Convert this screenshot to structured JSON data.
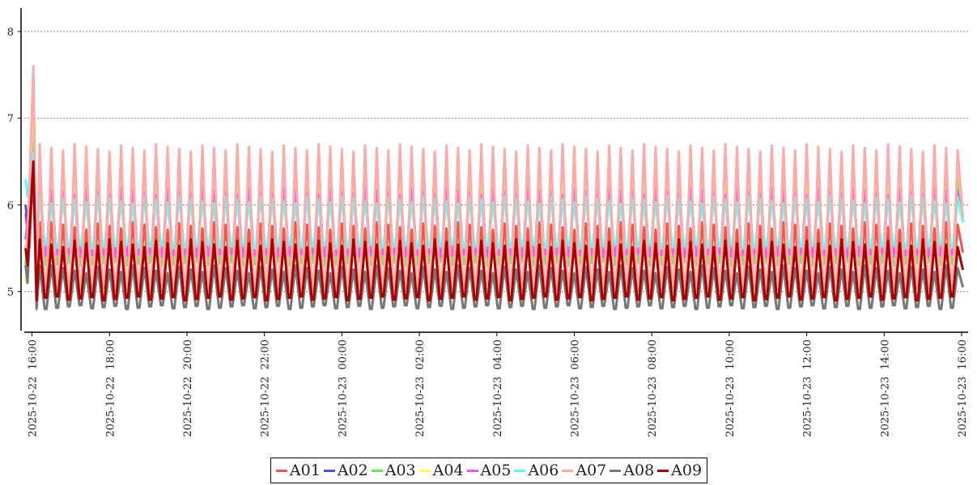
{
  "chart_data": {
    "type": "line",
    "title": "",
    "xlabel": "",
    "ylabel": "",
    "ylim": [
      4.55,
      8.27
    ],
    "yticks": [
      5,
      6,
      7,
      8
    ],
    "x_range": [
      "2025-10-22 15:48",
      "2025-10-23 16:10"
    ],
    "xticks": [
      "2025-10-22  16:00",
      "2025-10-22  18:00",
      "2025-10-22  20:00",
      "2025-10-22  22:00",
      "2025-10-23  00:00",
      "2025-10-23  02:00",
      "2025-10-23  04:00",
      "2025-10-23  06:00",
      "2025-10-23  08:00",
      "2025-10-23  10:00",
      "2025-10-23  12:00",
      "2025-10-23  14:00",
      "2025-10-23  16:00"
    ],
    "grid": "horizontal-dotted",
    "legend_position": "bottom-center",
    "series": [
      {
        "name": "A01",
        "color": "#ee5555",
        "low": 5.1,
        "high": 5.8,
        "start": [
          5.9,
          5.7,
          5.5
        ],
        "peak": 6.5
      },
      {
        "name": "A02",
        "color": "#4f4fdd",
        "low": 5.4,
        "high": 6.3,
        "start": [
          6.0,
          5.8,
          5.9
        ],
        "peak": 7.0
      },
      {
        "name": "A03",
        "color": "#55ee55",
        "low": 5.3,
        "high": 6.4,
        "start": [
          5.3,
          5.6,
          6.0
        ],
        "peak": 7.1
      },
      {
        "name": "A04",
        "color": "#ffff55",
        "low": 5.0,
        "high": 6.6,
        "start": [
          5.1,
          5.4,
          6.0
        ],
        "peak": 7.5
      },
      {
        "name": "A05",
        "color": "#ee55ee",
        "low": 5.4,
        "high": 6.2,
        "start": [
          5.6,
          5.8,
          6.0
        ],
        "peak": 6.6
      },
      {
        "name": "A06",
        "color": "#55ffff",
        "low": 5.5,
        "high": 6.1,
        "start": [
          6.3,
          6.1,
          6.3
        ],
        "peak": 6.6
      },
      {
        "name": "A07",
        "color": "#ffaaaa",
        "low": 5.0,
        "high": 6.7,
        "start": [
          5.5,
          5.6,
          6.2
        ],
        "peak": 7.6
      },
      {
        "name": "A08",
        "color": "#777777",
        "low": 4.8,
        "high": 5.3,
        "start": [
          5.3,
          5.1,
          5.6
        ],
        "peak": 6.4
      },
      {
        "name": "A09",
        "color": "#aa0000",
        "low": 4.9,
        "high": 5.6,
        "start": [
          5.5,
          5.3,
          5.7
        ],
        "peak": 6.5
      }
    ],
    "cycle_period_minutes": 18
  }
}
